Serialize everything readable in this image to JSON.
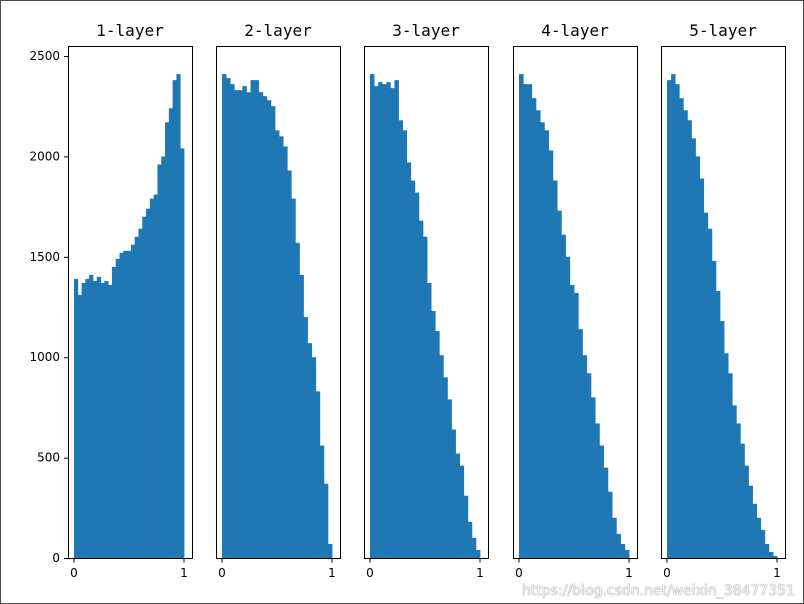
{
  "chart_data": [
    {
      "type": "bar",
      "title": "1-layer",
      "xlim": [
        0,
        1
      ],
      "ylim": [
        0,
        2550
      ],
      "xticks": [
        "0",
        "1"
      ],
      "yticks": [
        "0",
        "500",
        "1000",
        "1500",
        "2000",
        "2500"
      ],
      "color": "#1f77b4",
      "values": [
        1390,
        1310,
        1370,
        1390,
        1410,
        1380,
        1400,
        1370,
        1380,
        1360,
        1450,
        1490,
        1520,
        1530,
        1530,
        1560,
        1600,
        1640,
        1700,
        1740,
        1790,
        1810,
        1960,
        2000,
        2170,
        2240,
        2380,
        2410,
        2040
      ]
    },
    {
      "type": "bar",
      "title": "2-layer",
      "xlim": [
        0,
        1
      ],
      "ylim": [
        0,
        2550
      ],
      "xticks": [
        "0",
        "1"
      ],
      "yticks": [],
      "color": "#1f77b4",
      "values": [
        2410,
        2390,
        2360,
        2330,
        2330,
        2350,
        2320,
        2380,
        2380,
        2320,
        2300,
        2280,
        2250,
        2130,
        2100,
        2050,
        1930,
        1790,
        1570,
        1410,
        1200,
        1070,
        1000,
        830,
        560,
        370,
        70
      ]
    },
    {
      "type": "bar",
      "title": "3-layer",
      "xlim": [
        0,
        1
      ],
      "ylim": [
        0,
        2550
      ],
      "xticks": [
        "0",
        "1"
      ],
      "yticks": [],
      "color": "#1f77b4",
      "values": [
        2410,
        2350,
        2370,
        2360,
        2370,
        2340,
        2380,
        2180,
        2130,
        1970,
        1880,
        1820,
        1680,
        1600,
        1370,
        1230,
        1130,
        1010,
        900,
        790,
        640,
        520,
        460,
        310,
        180,
        100,
        40
      ]
    },
    {
      "type": "bar",
      "title": "4-layer",
      "xlim": [
        0,
        1
      ],
      "ylim": [
        0,
        2550
      ],
      "xticks": [
        "0",
        "1"
      ],
      "yticks": [],
      "color": "#1f77b4",
      "values": [
        2410,
        2360,
        2360,
        2290,
        2230,
        2170,
        2130,
        2030,
        1880,
        1730,
        1610,
        1500,
        1360,
        1320,
        1140,
        1010,
        920,
        800,
        670,
        560,
        450,
        330,
        200,
        120,
        70,
        40
      ]
    },
    {
      "type": "bar",
      "title": "5-layer",
      "xlim": [
        0,
        1
      ],
      "ylim": [
        0,
        2550
      ],
      "xticks": [
        "0",
        "1"
      ],
      "yticks": [],
      "color": "#1f77b4",
      "values": [
        2380,
        2410,
        2360,
        2290,
        2230,
        2180,
        2090,
        2000,
        1890,
        1720,
        1640,
        1480,
        1330,
        1180,
        1020,
        920,
        760,
        670,
        570,
        460,
        360,
        270,
        200,
        140,
        70,
        30,
        10
      ]
    }
  ],
  "watermark": "https://blog.csdn.net/weixin_38477351"
}
